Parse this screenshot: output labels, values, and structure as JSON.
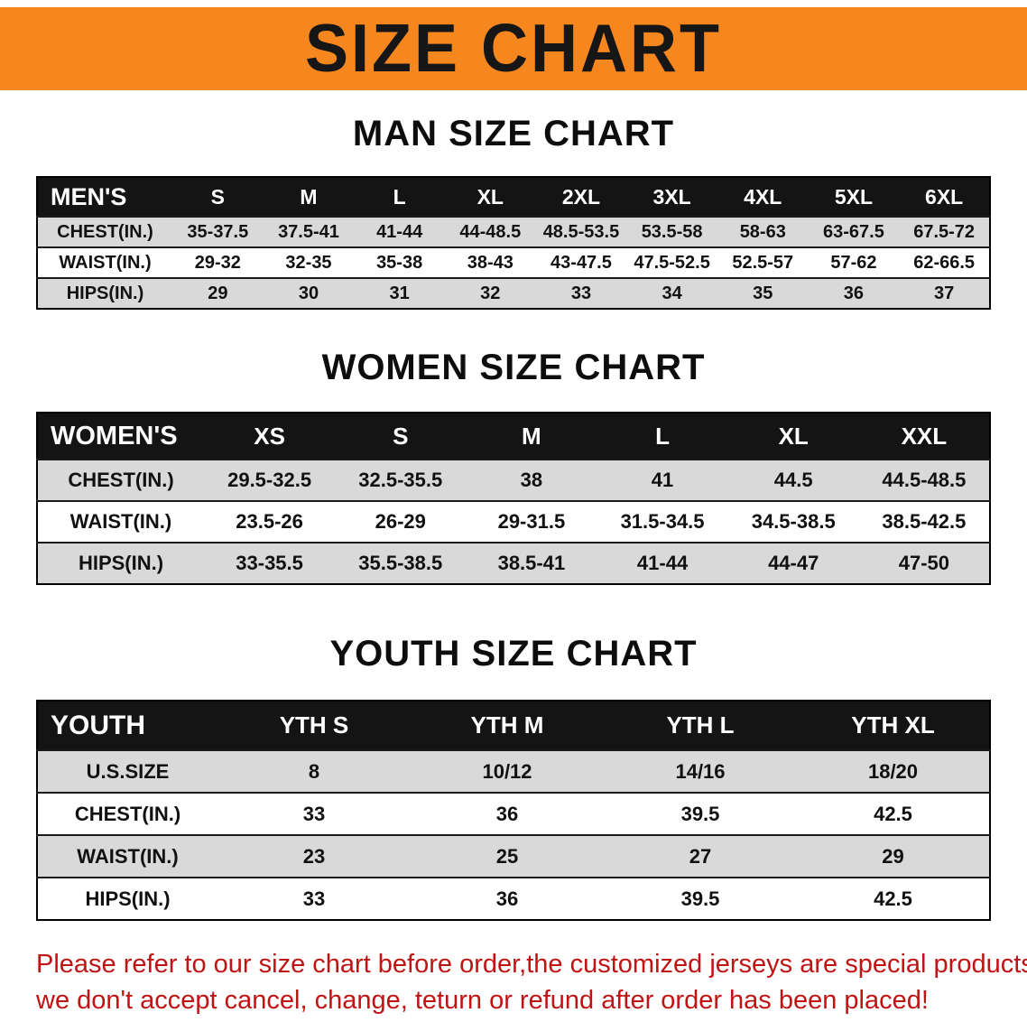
{
  "banner": {
    "title": "SIZE CHART"
  },
  "sections": [
    {
      "id": "men",
      "heading": "MAN SIZE CHART",
      "table": {
        "header": [
          "MEN'S",
          "S",
          "M",
          "L",
          "XL",
          "2XL",
          "3XL",
          "4XL",
          "5XL",
          "6XL"
        ],
        "rows": [
          [
            "CHEST(IN.)",
            "35-37.5",
            "37.5-41",
            "41-44",
            "44-48.5",
            "48.5-53.5",
            "53.5-58",
            "58-63",
            "63-67.5",
            "67.5-72"
          ],
          [
            "WAIST(IN.)",
            "29-32",
            "32-35",
            "35-38",
            "38-43",
            "43-47.5",
            "47.5-52.5",
            "52.5-57",
            "57-62",
            "62-66.5"
          ],
          [
            "HIPS(IN.)",
            "29",
            "30",
            "31",
            "32",
            "33",
            "34",
            "35",
            "36",
            "37"
          ]
        ]
      }
    },
    {
      "id": "women",
      "heading": "WOMEN SIZE CHART",
      "table": {
        "header": [
          "WOMEN'S",
          "XS",
          "S",
          "M",
          "L",
          "XL",
          "XXL"
        ],
        "rows": [
          [
            "CHEST(IN.)",
            "29.5-32.5",
            "32.5-35.5",
            "38",
            "41",
            "44.5",
            "44.5-48.5"
          ],
          [
            "WAIST(IN.)",
            "23.5-26",
            "26-29",
            "29-31.5",
            "31.5-34.5",
            "34.5-38.5",
            "38.5-42.5"
          ],
          [
            "HIPS(IN.)",
            "33-35.5",
            "35.5-38.5",
            "38.5-41",
            "41-44",
            "44-47",
            "47-50"
          ]
        ]
      }
    },
    {
      "id": "youth",
      "heading": "YOUTH SIZE CHART",
      "table": {
        "header": [
          "YOUTH",
          "YTH S",
          "YTH M",
          "YTH L",
          "YTH XL"
        ],
        "rows": [
          [
            "U.S.SIZE",
            "8",
            "10/12",
            "14/16",
            "18/20"
          ],
          [
            "CHEST(IN.)",
            "33",
            "36",
            "39.5",
            "42.5"
          ],
          [
            "WAIST(IN.)",
            "23",
            "25",
            "27",
            "29"
          ],
          [
            "HIPS(IN.)",
            "33",
            "36",
            "39.5",
            "42.5"
          ]
        ]
      }
    }
  ],
  "disclaimer": {
    "lines": [
      "Please refer to our size chart before order,the customized jerseys are special products,",
      "we don't accept cancel, change, teturn or refund after order has been placed!"
    ]
  },
  "colors": {
    "banner_bg": "#f6871f",
    "table_header_bg": "#141414",
    "row_stripe": "#d9d9d9",
    "disclaimer_text": "#c01414"
  }
}
